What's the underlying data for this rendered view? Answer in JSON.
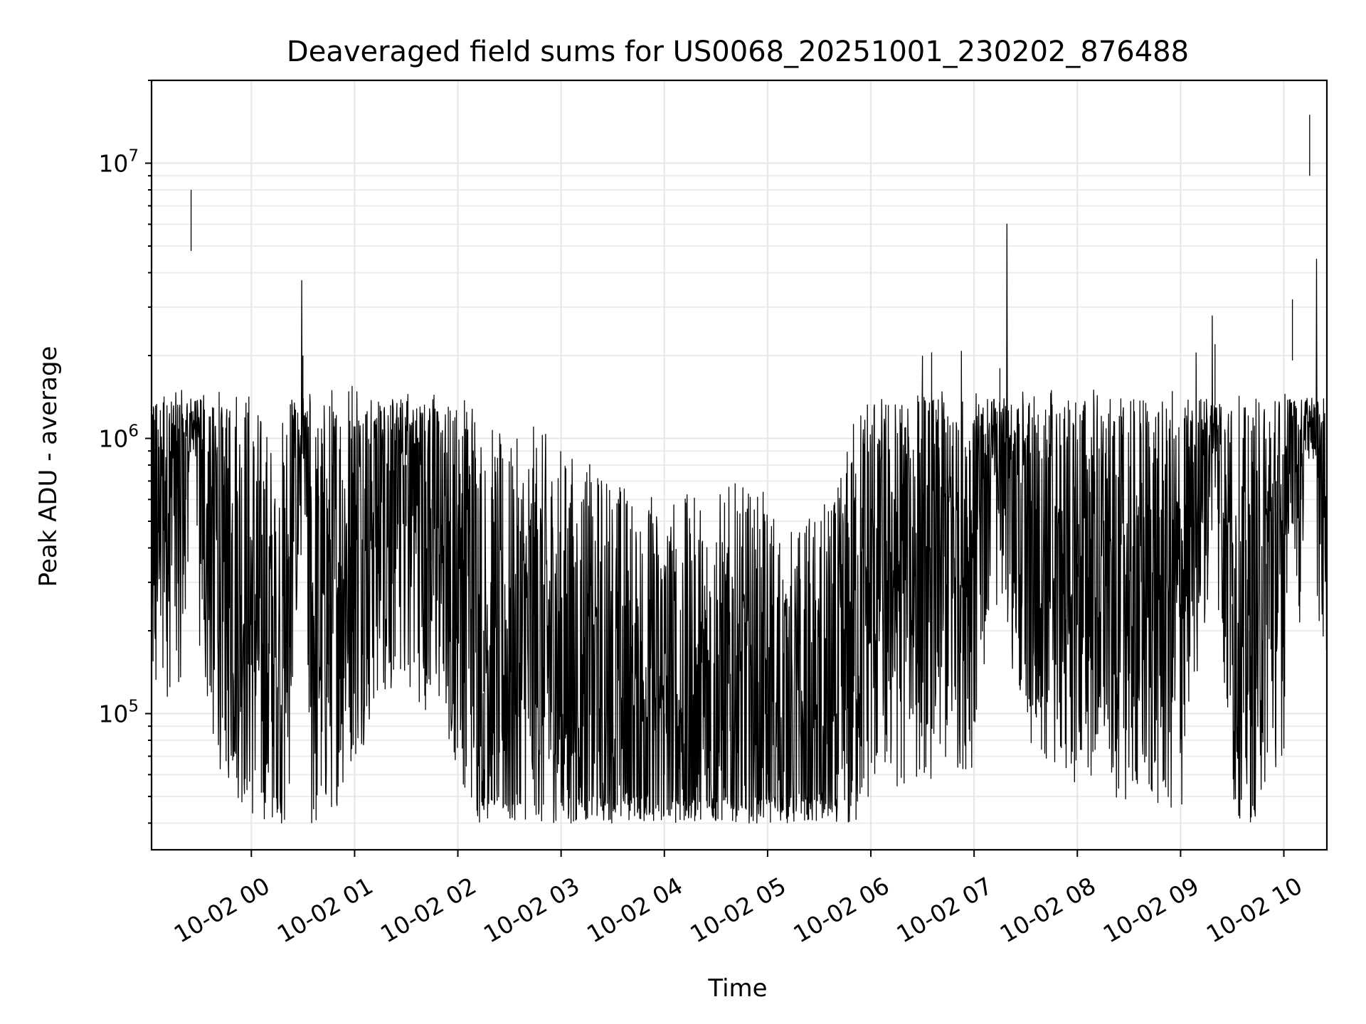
{
  "chart_data": {
    "type": "line",
    "title": "Deaveraged field sums for US0068_20251001_230202_876488",
    "xlabel": "Time",
    "ylabel": "Peak ADU - average",
    "yscale": "log",
    "ylim": [
      32000,
      20000000
    ],
    "xlim": [
      "2025-10-01 23:02",
      "2025-10-02 10:25"
    ],
    "x_tick_labels": [
      "10-02 00",
      "10-02 01",
      "10-02 02",
      "10-02 03",
      "10-02 04",
      "10-02 05",
      "10-02 06",
      "10-02 07",
      "10-02 08",
      "10-02 09",
      "10-02 10"
    ],
    "x_ticks": [
      "2025-10-02 00:00",
      "2025-10-02 01:00",
      "2025-10-02 02:00",
      "2025-10-02 03:00",
      "2025-10-02 04:00",
      "2025-10-02 05:00",
      "2025-10-02 06:00",
      "2025-10-02 07:00",
      "2025-10-02 08:00",
      "2025-10-02 09:00",
      "2025-10-02 10:00"
    ],
    "y_ticks": [
      {
        "value": 100000,
        "base": "10",
        "exp": "5"
      },
      {
        "value": 1000000,
        "base": "10",
        "exp": "6"
      },
      {
        "value": 10000000,
        "base": "10",
        "exp": "7"
      }
    ],
    "grid": true,
    "line_color": "#000000",
    "series": [
      {
        "x": [
          "2025-10-01 23:02",
          "2025-10-01 23:10",
          "2025-10-01 23:18",
          "2025-10-01 23:22",
          "2025-10-01 23:25",
          "2025-10-01 23:30",
          "2025-10-01 23:38",
          "2025-10-01 23:45",
          "2025-10-01 23:52",
          "2025-10-02 00:00",
          "2025-10-02 00:10",
          "2025-10-02 00:20",
          "2025-10-02 00:30",
          "2025-10-02 00:35",
          "2025-10-02 00:45",
          "2025-10-02 01:00",
          "2025-10-02 01:15",
          "2025-10-02 01:30",
          "2025-10-02 01:45",
          "2025-10-02 02:00",
          "2025-10-02 02:15",
          "2025-10-02 02:30",
          "2025-10-02 02:45",
          "2025-10-02 03:00",
          "2025-10-02 03:30",
          "2025-10-02 04:00",
          "2025-10-02 04:20",
          "2025-10-02 04:40",
          "2025-10-02 05:00",
          "2025-10-02 05:20",
          "2025-10-02 05:40",
          "2025-10-02 05:50",
          "2025-10-02 06:00",
          "2025-10-02 06:30",
          "2025-10-02 07:00",
          "2025-10-02 07:15",
          "2025-10-02 07:30",
          "2025-10-02 08:00",
          "2025-10-02 08:30",
          "2025-10-02 09:00",
          "2025-10-02 09:20",
          "2025-10-02 09:30",
          "2025-10-02 09:40",
          "2025-10-02 09:50",
          "2025-10-02 10:00",
          "2025-10-02 10:05",
          "2025-10-02 10:10",
          "2025-10-02 10:15",
          "2025-10-02 10:20",
          "2025-10-02 10:25"
        ],
        "y": [
          500000,
          700000,
          800000,
          1000000,
          8000000,
          800000,
          450000,
          350000,
          300000,
          250000,
          180000,
          200000,
          2000000,
          200000,
          250000,
          400000,
          700000,
          800000,
          600000,
          400000,
          200000,
          150000,
          180000,
          150000,
          120000,
          100000,
          100000,
          110000,
          100000,
          80000,
          100000,
          200000,
          300000,
          350000,
          400000,
          1800000,
          400000,
          350000,
          300000,
          250000,
          2200000,
          250000,
          200000,
          350000,
          450000,
          3200000,
          1000000,
          15000000,
          1200000,
          900000
        ]
      }
    ]
  }
}
